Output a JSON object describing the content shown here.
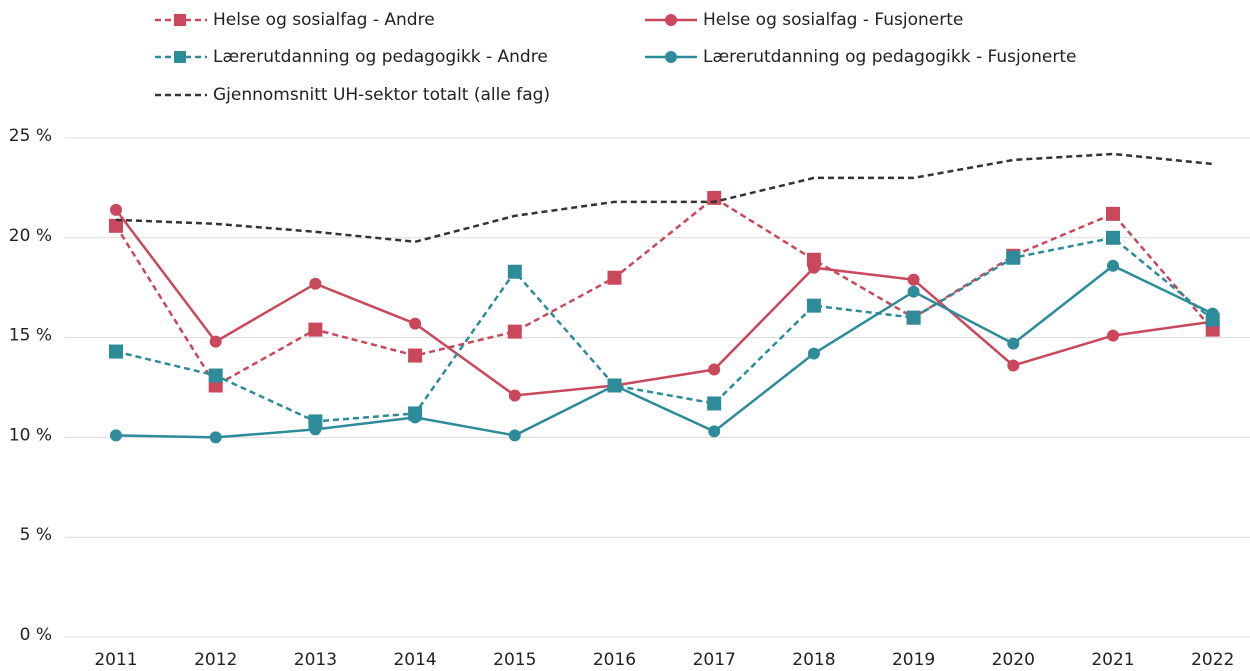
{
  "chart_data": {
    "type": "line",
    "categories": [
      "2011",
      "2012",
      "2013",
      "2014",
      "2015",
      "2016",
      "2017",
      "2018",
      "2019",
      "2020",
      "2021",
      "2022"
    ],
    "series": [
      {
        "name": "Helse og sosialfag - Andre",
        "color": "#c9485b",
        "dash": true,
        "marker": "square",
        "values": [
          20.6,
          12.6,
          15.4,
          14.1,
          15.3,
          18.0,
          22.0,
          18.9,
          16.0,
          19.1,
          21.2,
          15.4
        ]
      },
      {
        "name": "Helse og sosialfag - Fusjonerte",
        "color": "#c9485b",
        "dash": false,
        "marker": "circle",
        "values": [
          21.4,
          14.8,
          17.7,
          15.7,
          12.1,
          12.6,
          13.4,
          18.5,
          17.9,
          13.6,
          15.1,
          15.8
        ]
      },
      {
        "name": "Lærerutdanning og pedagogikk - Andre",
        "color": "#2e8b9a",
        "dash": true,
        "marker": "square",
        "values": [
          14.3,
          13.1,
          10.8,
          11.2,
          18.3,
          12.6,
          11.7,
          16.6,
          16.0,
          19.0,
          20.0,
          15.9
        ]
      },
      {
        "name": "Lærerutdanning og pedagogikk - Fusjonerte",
        "color": "#2e8b9a",
        "dash": false,
        "marker": "circle",
        "values": [
          10.1,
          10.0,
          10.4,
          11.0,
          10.1,
          12.6,
          10.3,
          14.2,
          17.3,
          14.7,
          18.6,
          16.2
        ]
      },
      {
        "name": "Gjennomsnitt UH-sektor totalt (alle fag)",
        "color": "#333333",
        "dash": true,
        "marker": null,
        "values": [
          20.9,
          20.7,
          20.3,
          19.8,
          21.1,
          21.8,
          21.8,
          23.0,
          23.0,
          23.9,
          24.2,
          23.7
        ]
      }
    ],
    "ylim": [
      0,
      25
    ],
    "yticks": [
      {
        "value": 0,
        "label": "0 %"
      },
      {
        "value": 5,
        "label": "5 %"
      },
      {
        "value": 10,
        "label": "10 %"
      },
      {
        "value": 15,
        "label": "15 %"
      },
      {
        "value": 20,
        "label": "20 %"
      },
      {
        "value": 25,
        "label": "25 %"
      }
    ],
    "grid": true,
    "legend": "top"
  }
}
